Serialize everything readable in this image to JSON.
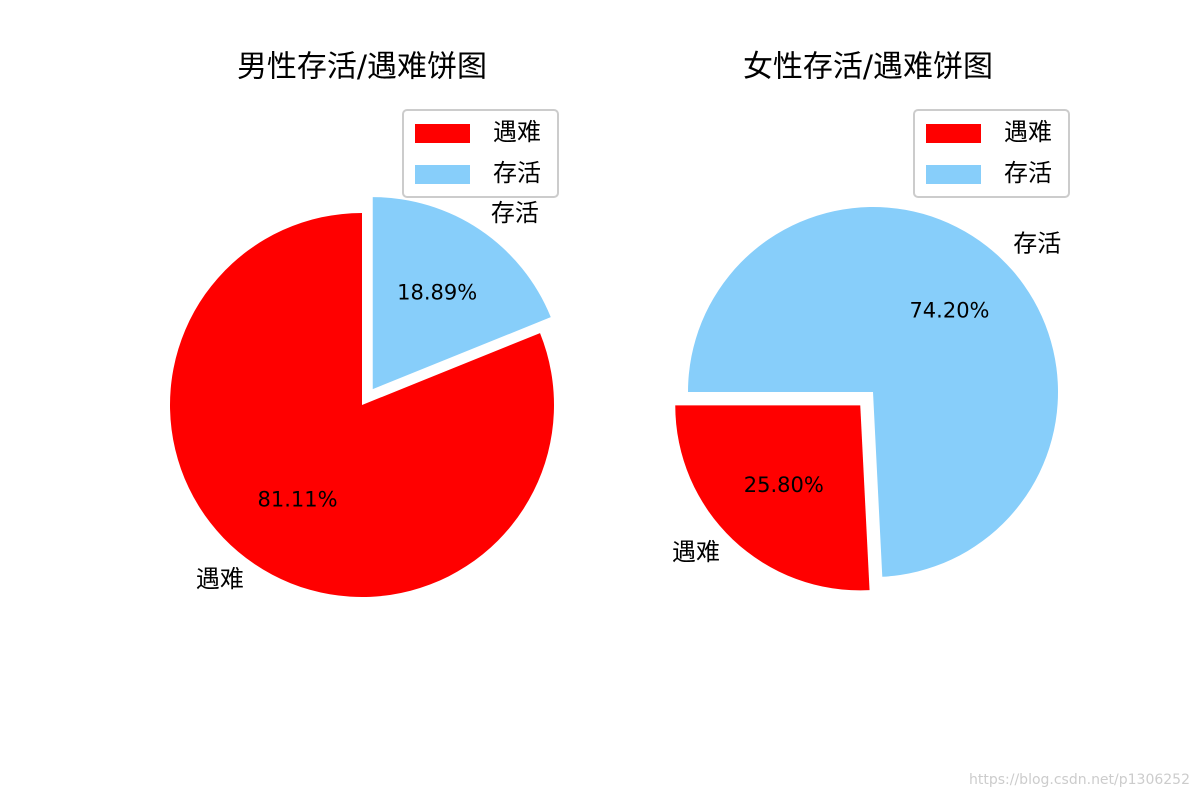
{
  "chart_data": [
    {
      "type": "pie",
      "title": "男性存活/遇难饼图",
      "categories": [
        "遇难",
        "存活"
      ],
      "values": [
        81.11,
        18.89
      ],
      "value_labels": [
        "81.11%",
        "18.89%"
      ],
      "colors": [
        "#ff0000",
        "#87cefa"
      ],
      "legend": "upper right"
    },
    {
      "type": "pie",
      "title": "女性存活/遇难饼图",
      "categories": [
        "遇难",
        "存活"
      ],
      "values": [
        25.8,
        74.2
      ],
      "value_labels": [
        "25.80%",
        "74.20%"
      ],
      "colors": [
        "#ff0000",
        "#87cefa"
      ],
      "legend": "upper right"
    }
  ],
  "watermark": "https://blog.csdn.net/p1306252"
}
